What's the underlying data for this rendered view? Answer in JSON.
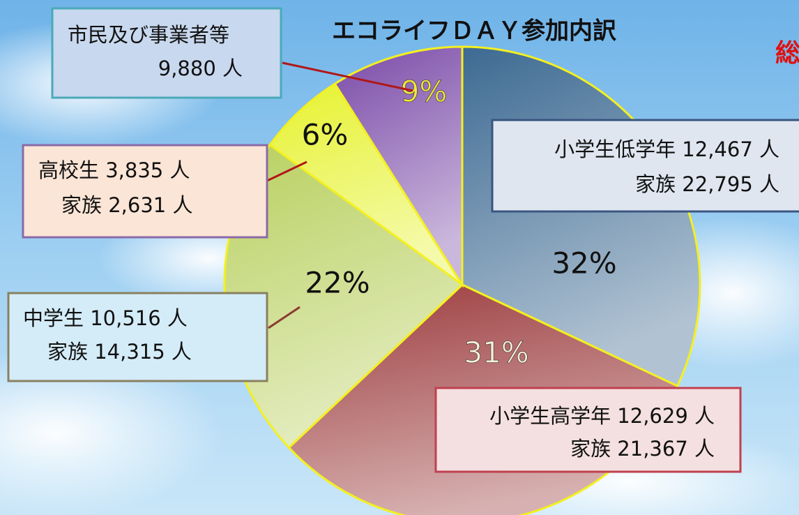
{
  "chart_data": {
    "type": "pie",
    "title": "エコライフＤＡＹ参加内訳",
    "values": [
      32,
      31,
      22,
      6,
      9
    ],
    "value_labels": [
      "32%",
      "31%",
      "22%",
      "6%",
      "9%"
    ],
    "colors": [
      "#3d6a92",
      "#9c3b3d",
      "#b9d060",
      "#e6f22e",
      "#7a4aa8"
    ],
    "annotations": [
      {
        "lines": [
          "小学生低学年  12,467 人",
          "家族  22,795 人"
        ]
      },
      {
        "lines": [
          "小学生高学年  12,629 人",
          "家族  21,367 人"
        ]
      },
      {
        "lines": [
          "中学生  10,516 人",
          "家族  14,315 人"
        ]
      },
      {
        "lines": [
          "高校生  3,835 人",
          "家族  2,631 人"
        ]
      },
      {
        "lines": [
          "市民及び事業者等",
          "9,880 人"
        ]
      }
    ],
    "side_text": "総"
  }
}
